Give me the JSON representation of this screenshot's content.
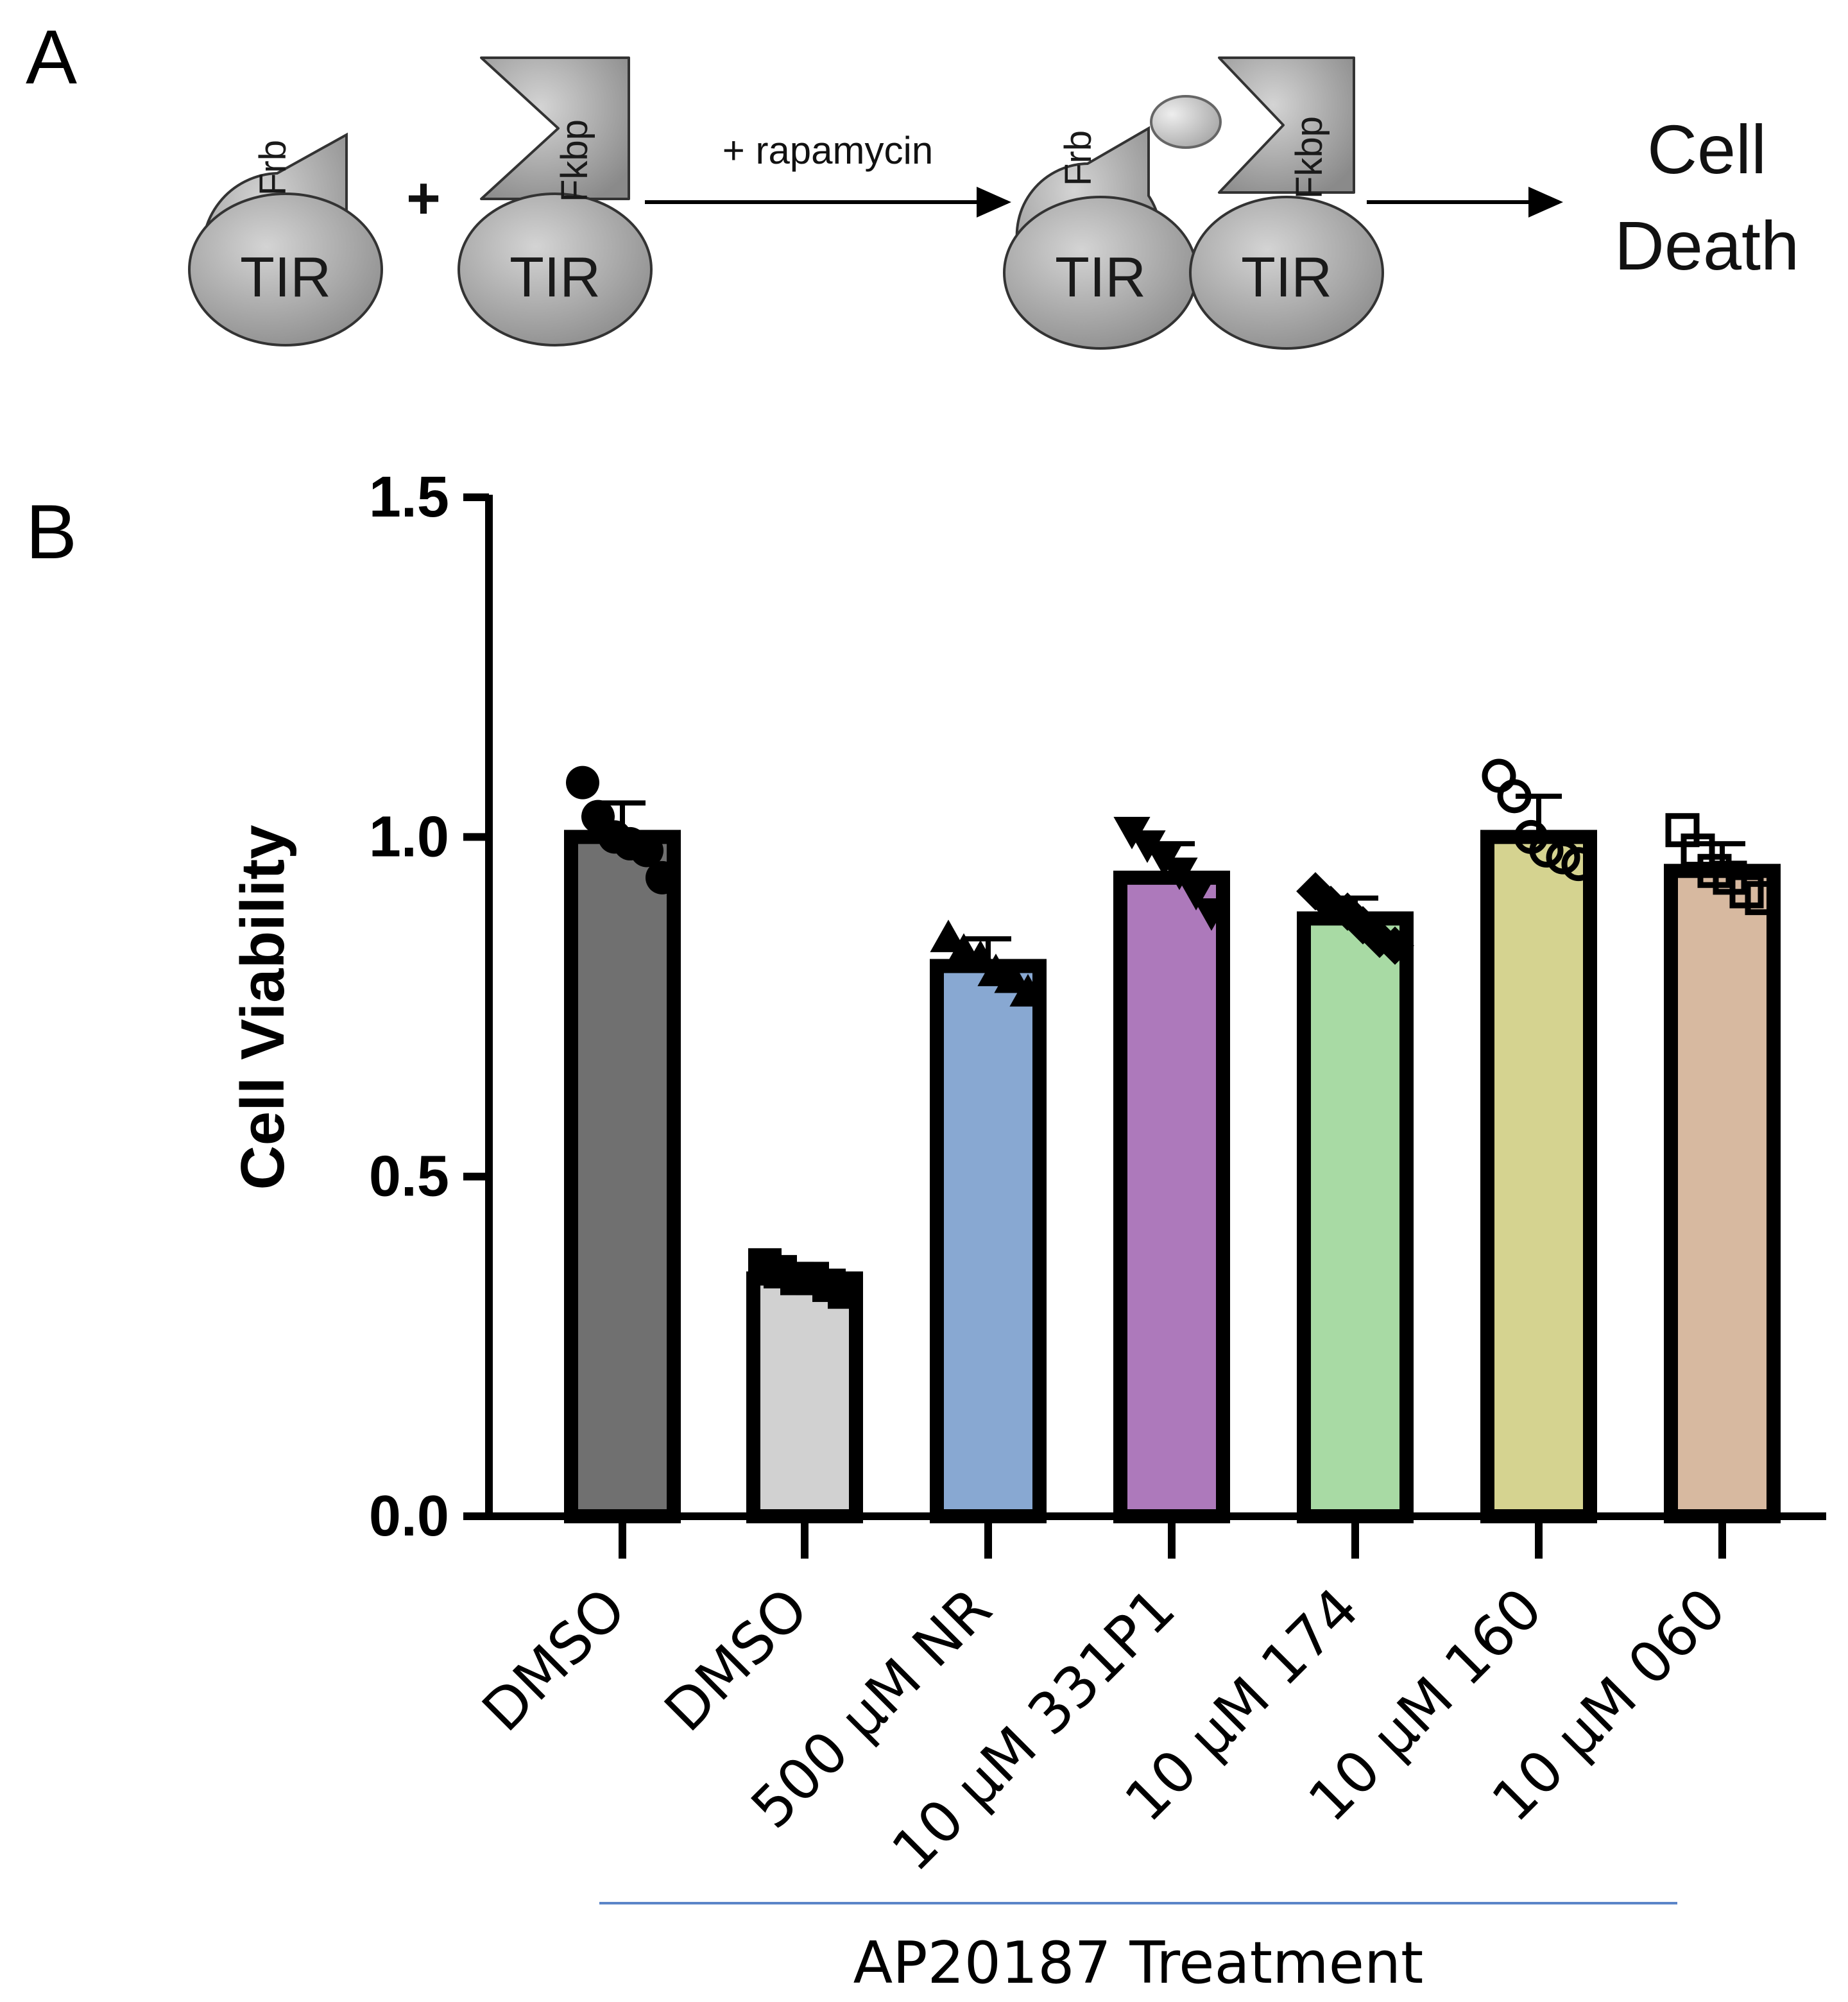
{
  "panels": {
    "a_label": "A",
    "b_label": "B"
  },
  "schematic": {
    "frb_label": "Frb",
    "fkbp_label": "Fkbp",
    "tir_label": "TIR",
    "plus_sign": "+",
    "arrow_label": "+ rapamycin",
    "outcome_line1": "Cell",
    "outcome_line2": "Death"
  },
  "colors": {
    "axis": "#000000",
    "group_line": "#5b85c8",
    "bars": [
      "#707070",
      "#d1d1d1",
      "#88a8d2",
      "#ad79bb",
      "#a8daa4",
      "#d5d390",
      "#d7b9a0"
    ]
  },
  "chart_data": {
    "type": "bar",
    "title": "",
    "xlabel": "AP20187 Treatment",
    "ylabel": "Cell Viability",
    "ylim": [
      0,
      1.5
    ],
    "yticks": [
      "0.0",
      "0.5",
      "1.0",
      "1.5"
    ],
    "categories": [
      "DMSO",
      "DMSO",
      "500 μM NR",
      "10 μM 331P1",
      "10 μM 174",
      "10 μM 160",
      "10 μM 060"
    ],
    "values": [
      1.0,
      0.35,
      0.81,
      0.94,
      0.88,
      1.0,
      0.95
    ],
    "error": [
      0.05,
      0.02,
      0.04,
      0.05,
      0.03,
      0.06,
      0.04
    ],
    "markers": [
      "circle-filled",
      "square-filled",
      "triangle-up-filled",
      "triangle-down-filled",
      "diamond-filled",
      "circle-open",
      "square-open"
    ],
    "points": [
      [
        1.08,
        1.03,
        1.0,
        0.99,
        0.98,
        0.94
      ],
      [
        0.37,
        0.36,
        0.35,
        0.35,
        0.34,
        0.33
      ],
      [
        0.85,
        0.83,
        0.82,
        0.8,
        0.79,
        0.77
      ],
      [
        1.01,
        0.99,
        0.97,
        0.95,
        0.92,
        0.89
      ],
      [
        0.92,
        0.9,
        0.89,
        0.87,
        0.85,
        0.84
      ],
      [
        1.09,
        1.06,
        1.0,
        0.98,
        0.97,
        0.96
      ],
      [
        1.01,
        0.98,
        0.95,
        0.94,
        0.92,
        0.91
      ]
    ],
    "group_bracket": {
      "label": "AP20187 Treatment",
      "from_category": 1,
      "to_category": 6
    }
  }
}
